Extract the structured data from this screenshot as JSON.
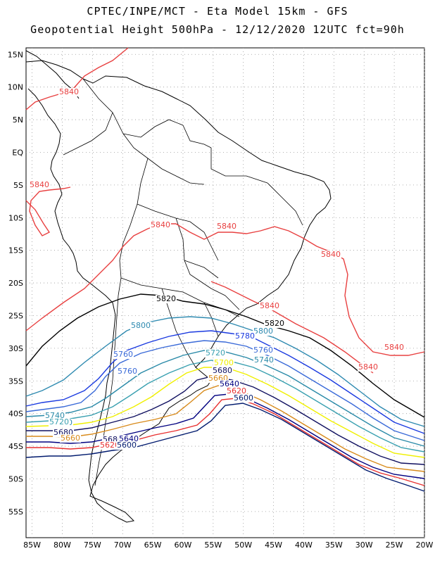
{
  "header": {
    "title_line1": "CPTEC/INPE/MCT -  Eta Model 15km - GFS",
    "title_line2": "Geopotential Height 500hPa - 12/12/2020 12UTC fct=90h"
  },
  "axes": {
    "lat_labels": [
      "15N",
      "10N",
      "5N",
      "EQ",
      "5S",
      "10S",
      "15S",
      "20S",
      "25S",
      "30S",
      "35S",
      "40S",
      "45S",
      "50S",
      "55S"
    ],
    "lat_values": [
      15,
      10,
      5,
      0,
      -5,
      -10,
      -15,
      -20,
      -25,
      -30,
      -35,
      -40,
      -45,
      -50,
      -55
    ],
    "lon_labels": [
      "85W",
      "80W",
      "75W",
      "70W",
      "65W",
      "60W",
      "55W",
      "50W",
      "45W",
      "40W",
      "35W",
      "30W",
      "25W",
      "20W"
    ],
    "lon_values": [
      -85,
      -80,
      -75,
      -70,
      -65,
      -60,
      -55,
      -50,
      -45,
      -40,
      -35,
      -30,
      -25,
      -20
    ],
    "extent": {
      "lon_min": -86,
      "lon_max": -20,
      "lat_min": -59,
      "lat_max": 16
    },
    "grid": true
  },
  "colors": {
    "c5600": "#001a6e",
    "c5620": "#e83030",
    "c5640": "#000080",
    "c5660": "#d88a1a",
    "c5680": "#101060",
    "c5700": "#f0f000",
    "c5720": "#3aa0b0",
    "c5740": "#2a8aa8",
    "c5760": "#3a6ad8",
    "c5780": "#1a3ae0",
    "c5800": "#2e8ab0",
    "c5820": "#000000",
    "c5840": "#e84040",
    "coast": "#000000"
  },
  "contours": [
    {
      "value": 5840,
      "label": "5840",
      "color_key": "c5840"
    },
    {
      "value": 5820,
      "label": "5820",
      "color_key": "c5820"
    },
    {
      "value": 5800,
      "label": "5800",
      "color_key": "c5800"
    },
    {
      "value": 5780,
      "label": "5780",
      "color_key": "c5780"
    },
    {
      "value": 5760,
      "label": "5760",
      "color_key": "c5760"
    },
    {
      "value": 5740,
      "label": "5740",
      "color_key": "c5740"
    },
    {
      "value": 5720,
      "label": "5720",
      "color_key": "c5720"
    },
    {
      "value": 5700,
      "label": "5700",
      "color_key": "c5700"
    },
    {
      "value": 5680,
      "label": "5680",
      "color_key": "c5680"
    },
    {
      "value": 5660,
      "label": "5660",
      "color_key": "c5660"
    },
    {
      "value": 5640,
      "label": "5640",
      "color_key": "c5640"
    },
    {
      "value": 5620,
      "label": "5620",
      "color_key": "c5620"
    },
    {
      "value": 5600,
      "label": "5600",
      "color_key": "c5600"
    }
  ]
}
